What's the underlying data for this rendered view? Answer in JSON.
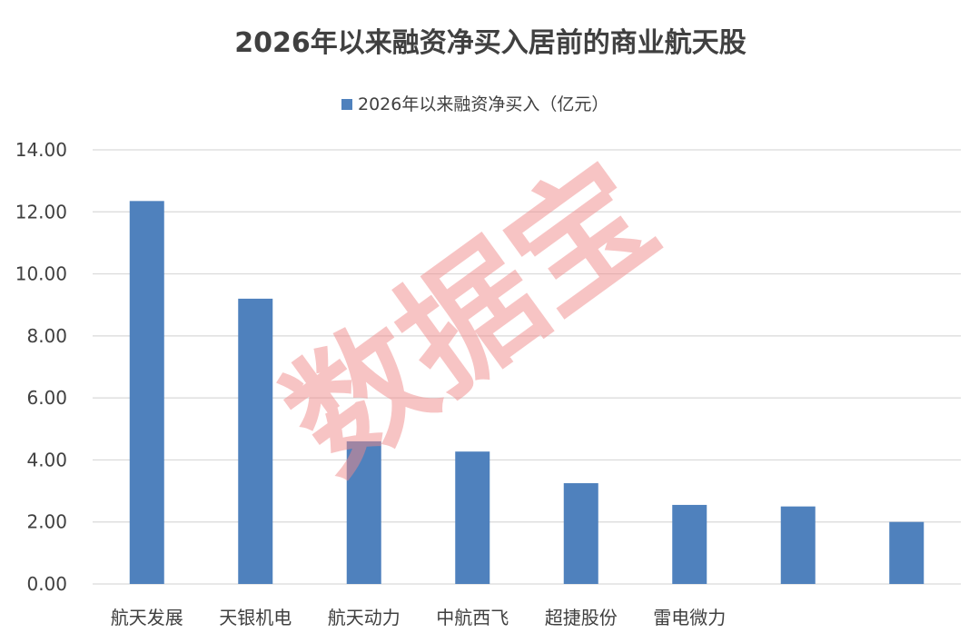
{
  "chart_data": {
    "type": "bar",
    "title": "2026年以来融资净买入居前的商业航天股",
    "categories": [
      "航天发展",
      "天银机电",
      "航天动力",
      "中航西飞",
      "超捷股份",
      "雷电微力",
      "",
      ""
    ],
    "series": [
      {
        "name": "2026年以来融资净买入（亿元）",
        "values": [
          12.35,
          9.2,
          4.6,
          4.27,
          3.25,
          2.55,
          2.5,
          2.0
        ]
      }
    ],
    "ylim": [
      0,
      14
    ],
    "yticks": [
      "0.00",
      "2.00",
      "4.00",
      "6.00",
      "8.00",
      "10.00",
      "12.00",
      "14.00"
    ],
    "xlabel": "",
    "ylabel": "",
    "grid": true,
    "legend_position": "top-center"
  },
  "colors": {
    "bar": "#4f81bd",
    "grid": "#d9d9d9",
    "text": "#404040",
    "watermark": "#f08a8a"
  },
  "watermark": {
    "text": "数据宝"
  }
}
